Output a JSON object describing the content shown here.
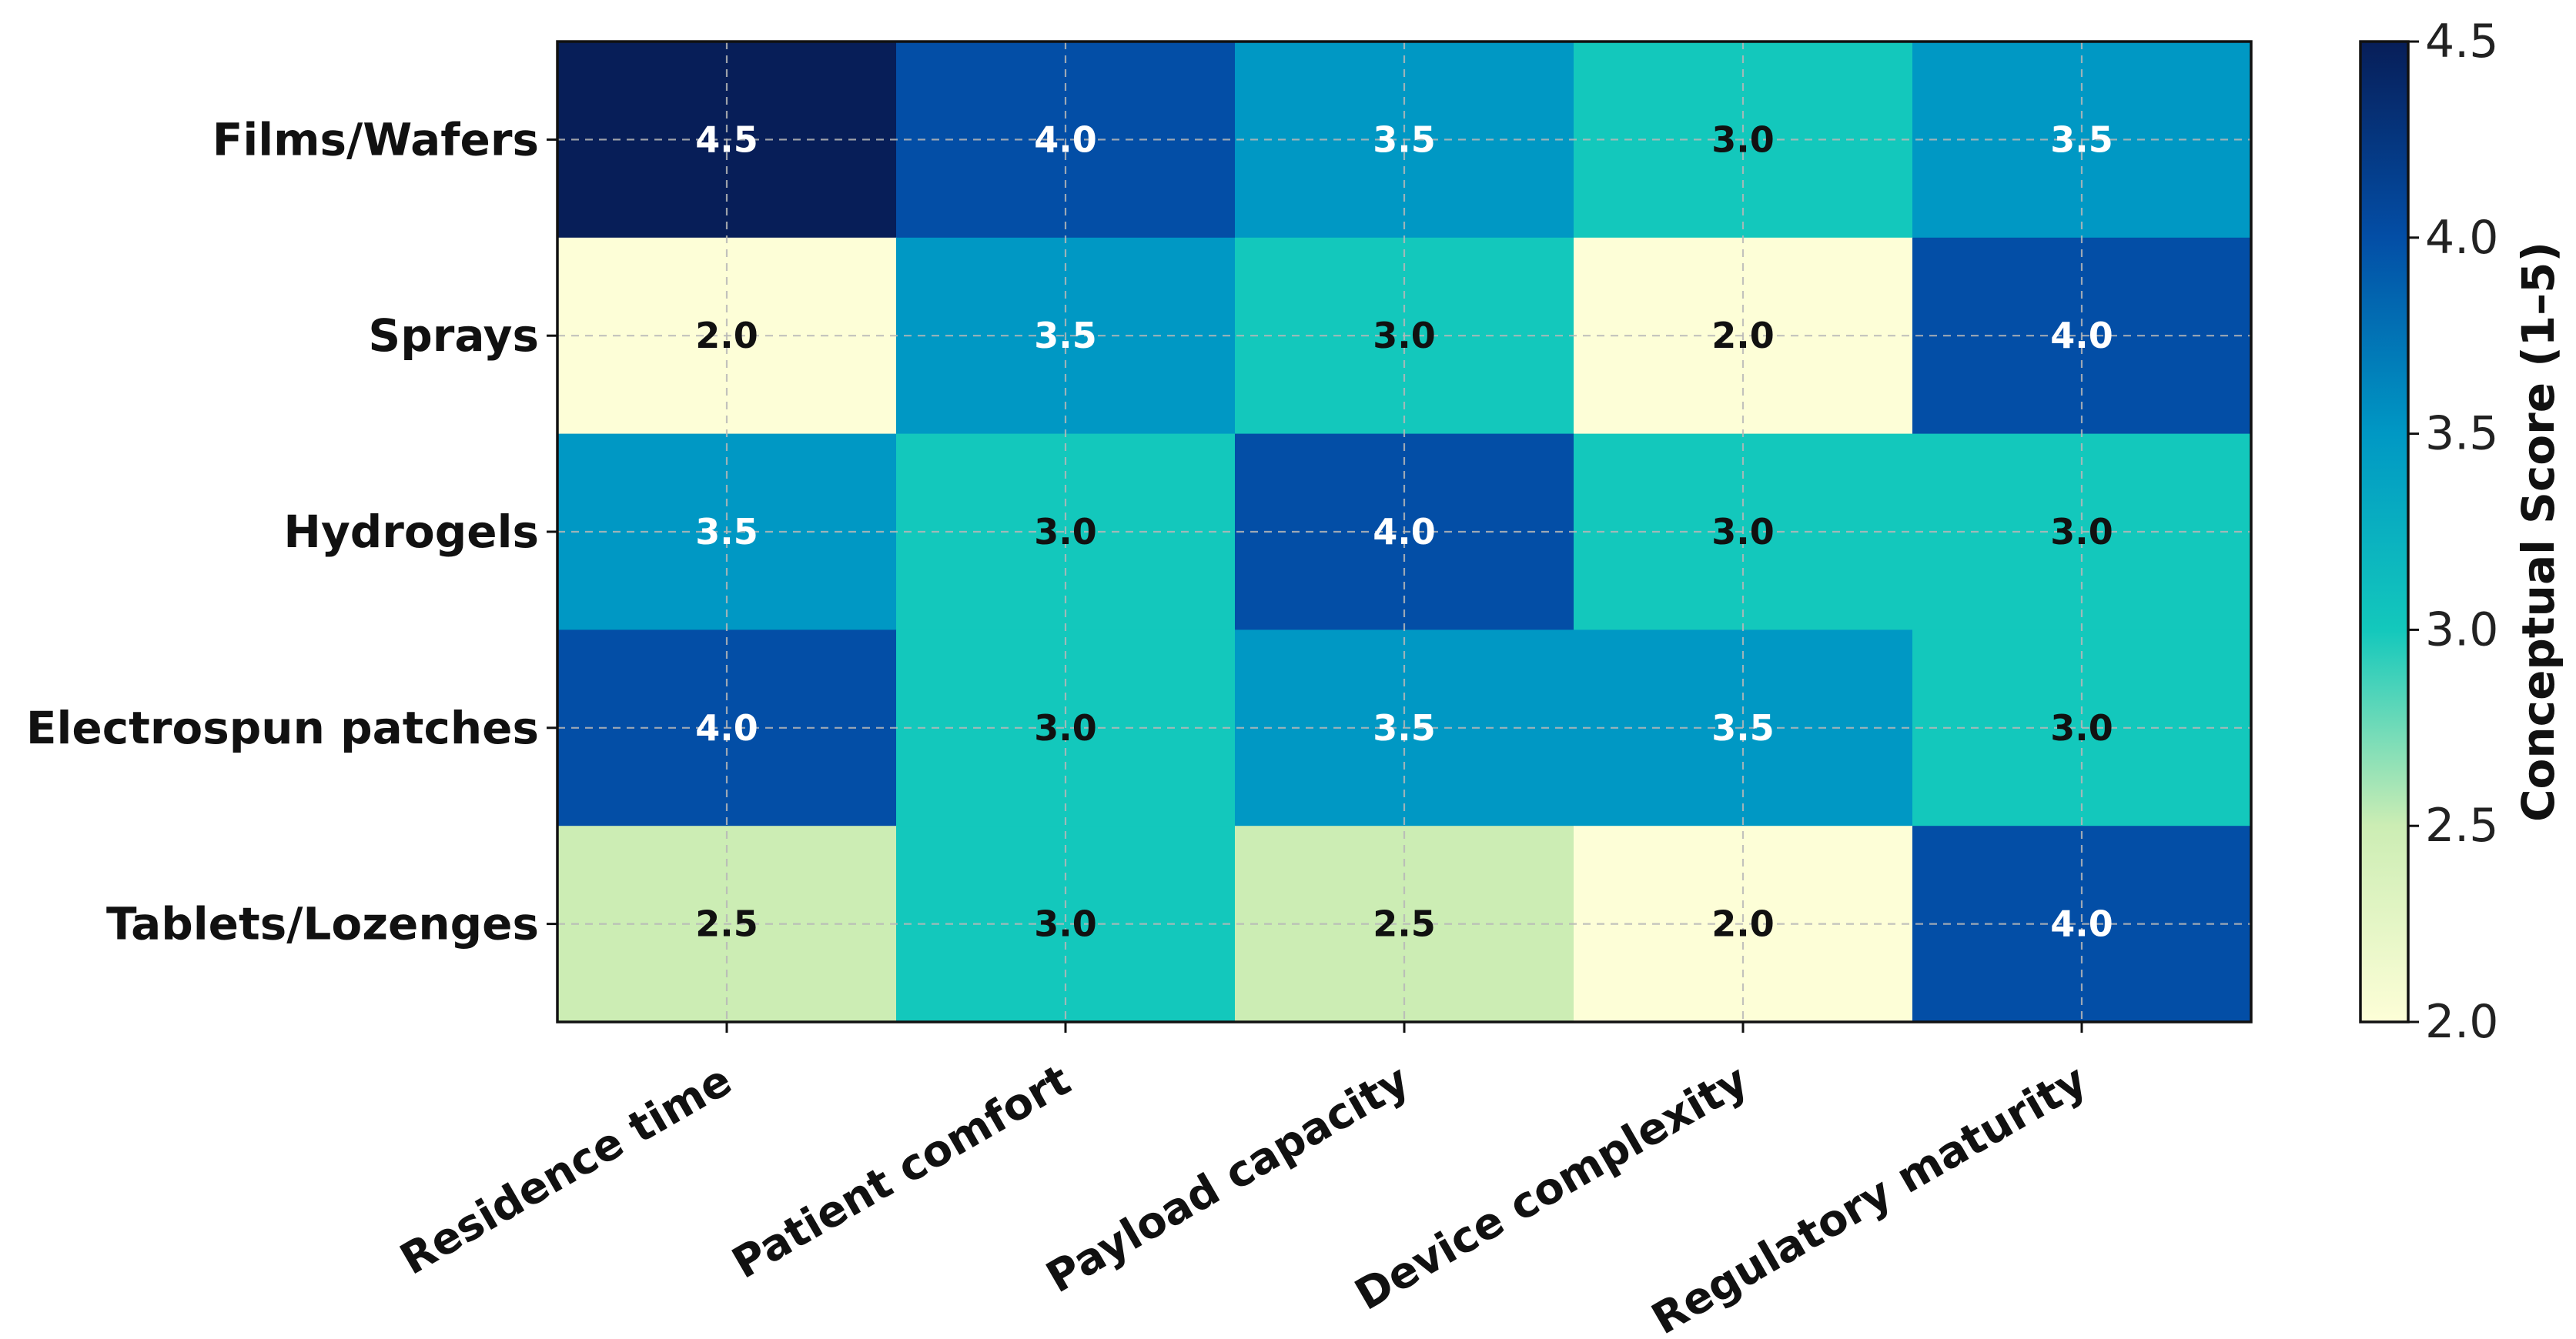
{
  "chart_data": {
    "type": "heatmap",
    "rows": [
      "Films/Wafers",
      "Sprays",
      "Hydrogels",
      "Electrospun patches",
      "Tablets/Lozenges"
    ],
    "columns": [
      "Residence time",
      "Patient comfort",
      "Payload capacity",
      "Device complexity",
      "Regulatory maturity"
    ],
    "values": [
      [
        4.5,
        4.0,
        3.5,
        3.0,
        3.5
      ],
      [
        2.0,
        3.5,
        3.0,
        2.0,
        4.0
      ],
      [
        3.5,
        3.0,
        4.0,
        3.0,
        3.0
      ],
      [
        4.0,
        3.0,
        3.5,
        3.5,
        3.0
      ],
      [
        2.5,
        3.0,
        2.5,
        2.0,
        4.0
      ]
    ],
    "value_labels": [
      [
        "4.5",
        "4.0",
        "3.5",
        "3.0",
        "3.5"
      ],
      [
        "2.0",
        "3.5",
        "3.0",
        "2.0",
        "4.0"
      ],
      [
        "3.5",
        "3.0",
        "4.0",
        "3.0",
        "3.0"
      ],
      [
        "4.0",
        "3.0",
        "3.5",
        "3.5",
        "3.0"
      ],
      [
        "2.5",
        "3.0",
        "2.5",
        "2.0",
        "4.0"
      ]
    ],
    "colorbar": {
      "label": "Conceptual Score (1–5)",
      "range": [
        2.0,
        4.5
      ],
      "ticks": [
        2.0,
        2.5,
        3.0,
        3.5,
        4.0,
        4.5
      ],
      "tick_labels": [
        "2.0",
        "2.5",
        "3.0",
        "3.5",
        "4.0",
        "4.5"
      ]
    },
    "colormap": "YlGnBu",
    "palette": {
      "2.0": "#fdfed7",
      "2.5": "#ccedb4",
      "3.0": "#13c8bc",
      "3.5": "#0098c4",
      "4.0": "#034ea6",
      "4.5": "#071e58"
    },
    "gradient_stops": [
      "#fdfed7",
      "#ccedb4",
      "#13c8bc",
      "#0098c4",
      "#034ea6",
      "#071e58"
    ],
    "text_colors": {
      "light": "#ffffff",
      "dark": "#111111"
    },
    "grid": true,
    "title": "",
    "xlabel": "",
    "ylabel": ""
  }
}
